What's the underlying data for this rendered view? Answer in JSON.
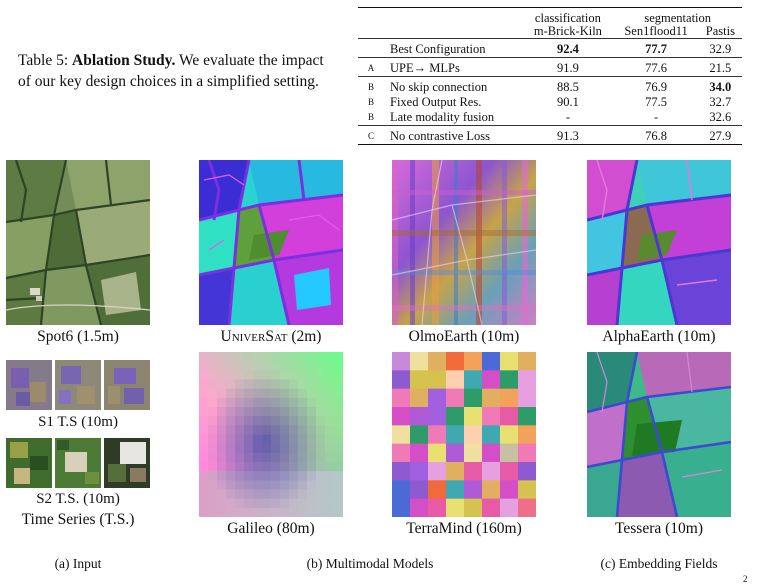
{
  "caption": {
    "prefix": "Table 5: ",
    "title": "Ablation Study.",
    "body": " We evaluate the impact of our key design choices in a simplified setting."
  },
  "table": {
    "header_groups": [
      "classification",
      "segmentation"
    ],
    "columns": [
      "m-Brick-Kiln",
      "Sen1flood11",
      "Pastis"
    ],
    "rows": [
      {
        "group": "",
        "label": "Best Configuration",
        "values": [
          "92.4",
          "77.7",
          "32.9"
        ],
        "bold": [
          true,
          true,
          false
        ]
      },
      {
        "group": "A",
        "label": "UPE→ MLPs",
        "values": [
          "91.9",
          "77.6",
          "21.5"
        ],
        "bold": [
          false,
          false,
          false
        ]
      },
      {
        "group": "B",
        "label": "No skip connection",
        "values": [
          "88.5",
          "76.9",
          "34.0"
        ],
        "bold": [
          false,
          false,
          true
        ]
      },
      {
        "group": "B",
        "label": "Fixed Output Res.",
        "values": [
          "90.1",
          "77.5",
          "32.7"
        ],
        "bold": [
          false,
          false,
          false
        ]
      },
      {
        "group": "B",
        "label": "Late modality fusion",
        "values": [
          "-",
          "-",
          "32.6"
        ],
        "bold": [
          false,
          false,
          false
        ]
      },
      {
        "group": "C",
        "label": "No contrastive Loss",
        "values": [
          "91.3",
          "76.8",
          "27.9"
        ],
        "bold": [
          false,
          false,
          false
        ]
      }
    ]
  },
  "figure": {
    "labels": {
      "spot6": "Spot6 (1.5m)",
      "universat_a": "Univer",
      "universat_b": "Sat",
      "universat_c": " (2m)",
      "olmoearth": "OlmoEarth (10m)",
      "alphaearth": "AlphaEarth (10m)",
      "s1": "S1 T.S (10m)",
      "s2": "S2 T.S. (10m)",
      "ts": "Time Series (T.S.)",
      "galileo": "Galileo (80m)",
      "terramind": "TerraMind (160m)",
      "tessera": "Tessera (10m)"
    },
    "subcaptions": {
      "a": "(a) Input",
      "b": "(b) Multimodal Models",
      "c": "(c) Embedding Fields"
    },
    "page_mark": "2"
  },
  "colors": {
    "field_green": "#6b8a4a",
    "hedge": "#2f4a26",
    "embed_cyan": "#2fd6d6",
    "embed_magenta": "#d43fd8",
    "embed_blue": "#3a2fd0",
    "embed_green": "#4fa04a"
  }
}
